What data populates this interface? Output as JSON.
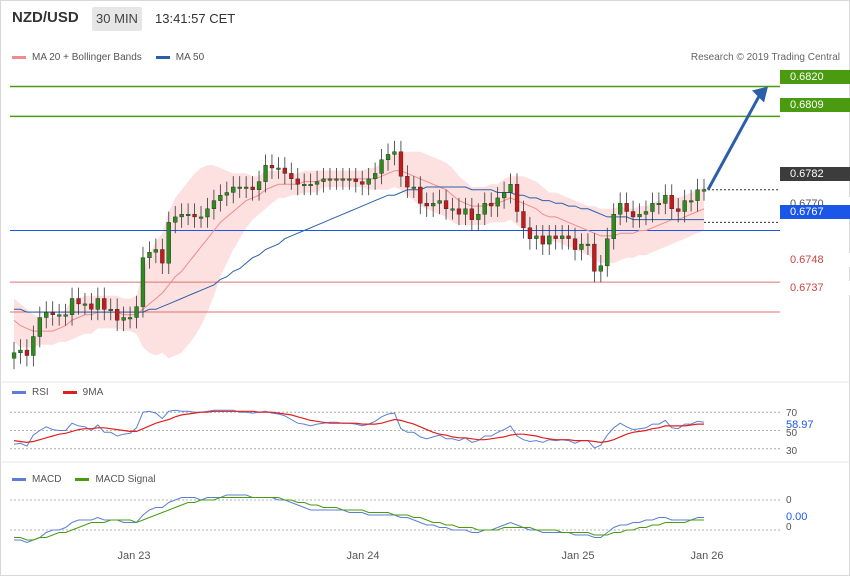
{
  "header": {
    "pair": "NZD/USD",
    "timeframe": "30 MIN",
    "time": "13:41:57 CET"
  },
  "main_legend": [
    {
      "label": "MA 20 + Bollinger Bands",
      "color": "#f28b8b"
    },
    {
      "label": "MA 50",
      "color": "#2b5fa8"
    }
  ],
  "copyright": "Research © 2019 Trading Central",
  "price_levels": [
    {
      "value": "0.6820",
      "kind": "resistance",
      "color": "#4a9b10"
    },
    {
      "value": "0.6809",
      "kind": "resistance",
      "color": "#4a9b10"
    },
    {
      "value": "0.6782",
      "kind": "last",
      "color": "#3c3c3c"
    },
    {
      "value": "0.6770",
      "kind": "ma",
      "color": "#555555"
    },
    {
      "value": "0.6767",
      "kind": "pivot",
      "color": "#1a57e8"
    },
    {
      "value": "0.6748",
      "kind": "support",
      "color": "#e05050"
    },
    {
      "value": "0.6737",
      "kind": "support",
      "color": "#e05050"
    }
  ],
  "rsi_legend": [
    {
      "label": "RSI",
      "color": "#5b7fd6"
    },
    {
      "label": "9MA",
      "color": "#e02020"
    }
  ],
  "rsi_ticks": [
    "70",
    "50",
    "30"
  ],
  "rsi_value": "58.97",
  "macd_legend": [
    {
      "label": "MACD",
      "color": "#5b7fd6"
    },
    {
      "label": "MACD Signal",
      "color": "#4a9b10"
    }
  ],
  "macd_ticks": [
    "0",
    "0"
  ],
  "macd_value": "0.00",
  "x_ticks": [
    "Jan 23",
    "Jan 24",
    "Jan 25",
    "Jan 26"
  ],
  "chart_data": {
    "type": "candlestick",
    "ylim": [
      0.6712,
      0.6829
    ],
    "price_series_close": [
      0.6722,
      0.6723,
      0.6721,
      0.6728,
      0.6735,
      0.6737,
      0.6736,
      0.6736,
      0.6736,
      0.6742,
      0.674,
      0.674,
      0.6738,
      0.6742,
      0.6738,
      0.6738,
      0.6734,
      0.6735,
      0.6735,
      0.6739,
      0.6757,
      0.6759,
      0.676,
      0.6755,
      0.677,
      0.6772,
      0.6773,
      0.6773,
      0.6772,
      0.6772,
      0.6775,
      0.6778,
      0.678,
      0.6781,
      0.6783,
      0.6783,
      0.6783,
      0.6782,
      0.6785,
      0.6791,
      0.679,
      0.679,
      0.6788,
      0.6786,
      0.6784,
      0.6784,
      0.6784,
      0.6785,
      0.6786,
      0.6786,
      0.6786,
      0.6786,
      0.6786,
      0.6785,
      0.6784,
      0.6786,
      0.6788,
      0.6793,
      0.6795,
      0.6796,
      0.6787,
      0.6783,
      0.6783,
      0.6777,
      0.6776,
      0.6777,
      0.6778,
      0.6775,
      0.6775,
      0.6773,
      0.6775,
      0.6771,
      0.6773,
      0.6777,
      0.6776,
      0.6779,
      0.6781,
      0.6784,
      0.6774,
      0.6768,
      0.6764,
      0.6765,
      0.6762,
      0.6765,
      0.6764,
      0.6765,
      0.6764,
      0.676,
      0.6762,
      0.6762,
      0.6752,
      0.6754,
      0.6764,
      0.6773,
      0.6777,
      0.6774,
      0.6772,
      0.6773,
      0.6774,
      0.6777,
      0.6777,
      0.678,
      0.6775,
      0.6774,
      0.6778,
      0.6778,
      0.6782,
      0.6782
    ],
    "ma20_series": [
      0.6734,
      0.6732,
      0.6731,
      0.673,
      0.673,
      0.673,
      0.673,
      0.6731,
      0.6732,
      0.6734,
      0.6735,
      0.6736,
      0.6736,
      0.6737,
      0.6737,
      0.6737,
      0.6737,
      0.6736,
      0.6736,
      0.6736,
      0.6738,
      0.674,
      0.6742,
      0.6744,
      0.6747,
      0.675,
      0.6752,
      0.6755,
      0.6758,
      0.6761,
      0.6764,
      0.6767,
      0.677,
      0.6772,
      0.6774,
      0.6776,
      0.6778,
      0.6779,
      0.678,
      0.6782,
      0.6783,
      0.6784,
      0.6784,
      0.6784,
      0.6784,
      0.6785,
      0.6785,
      0.6785,
      0.6786,
      0.6786,
      0.6786,
      0.6786,
      0.6786,
      0.6786,
      0.6786,
      0.6786,
      0.6786,
      0.6787,
      0.6788,
      0.6789,
      0.6789,
      0.6788,
      0.6787,
      0.6786,
      0.6785,
      0.6784,
      0.6783,
      0.6782,
      0.678,
      0.6778,
      0.6777,
      0.6776,
      0.6776,
      0.6776,
      0.6777,
      0.6777,
      0.6778,
      0.6779,
      0.6778,
      0.6777,
      0.6776,
      0.6775,
      0.6773,
      0.6772,
      0.6772,
      0.6771,
      0.677,
      0.6769,
      0.6768,
      0.6767,
      0.6766,
      0.6765,
      0.6765,
      0.6765,
      0.6766,
      0.6766,
      0.6766,
      0.6767,
      0.6767,
      0.6768,
      0.6769,
      0.677,
      0.6771,
      0.6771,
      0.6772,
      0.6773,
      0.6774,
      0.6775
    ],
    "ma50_series": [
      0.6738,
      0.6738,
      0.6737,
      0.6737,
      0.6737,
      0.6737,
      0.6737,
      0.6737,
      0.6737,
      0.6737,
      0.6737,
      0.6737,
      0.6737,
      0.6737,
      0.6737,
      0.6737,
      0.6737,
      0.6737,
      0.6737,
      0.6737,
      0.6737,
      0.6738,
      0.6738,
      0.6739,
      0.674,
      0.6741,
      0.6742,
      0.6743,
      0.6744,
      0.6745,
      0.6746,
      0.6747,
      0.6749,
      0.675,
      0.6752,
      0.6753,
      0.6755,
      0.6757,
      0.6758,
      0.676,
      0.6761,
      0.6762,
      0.6764,
      0.6765,
      0.6766,
      0.6767,
      0.6768,
      0.6769,
      0.677,
      0.6771,
      0.6772,
      0.6773,
      0.6774,
      0.6775,
      0.6776,
      0.6777,
      0.6778,
      0.6779,
      0.678,
      0.678,
      0.6781,
      0.6782,
      0.6782,
      0.6782,
      0.6783,
      0.6783,
      0.6783,
      0.6783,
      0.6783,
      0.6783,
      0.6783,
      0.6782,
      0.6782,
      0.6782,
      0.6782,
      0.6781,
      0.6781,
      0.6781,
      0.678,
      0.678,
      0.6779,
      0.6779,
      0.6778,
      0.6778,
      0.6777,
      0.6777,
      0.6776,
      0.6776,
      0.6775,
      0.6775,
      0.6774,
      0.6773,
      0.6772,
      0.6772,
      0.6772,
      0.6772,
      0.6771,
      0.6771,
      0.6771,
      0.6771,
      0.6771,
      0.6771,
      0.6771,
      0.6771,
      0.6771,
      0.6771,
      0.6771,
      0.6771
    ],
    "band_width": [
      0.0008,
      0.0008,
      0.0007,
      0.0006,
      0.0005,
      0.0005,
      0.0005,
      0.0005,
      0.0006,
      0.0007,
      0.0007,
      0.0007,
      0.0007,
      0.0006,
      0.0006,
      0.0006,
      0.0006,
      0.0006,
      0.0006,
      0.0007,
      0.0014,
      0.0018,
      0.0021,
      0.0022,
      0.0027,
      0.0029,
      0.003,
      0.003,
      0.003,
      0.0029,
      0.0027,
      0.0024,
      0.002,
      0.0017,
      0.0014,
      0.0012,
      0.001,
      0.0008,
      0.0007,
      0.0007,
      0.0006,
      0.0005,
      0.0005,
      0.0004,
      0.0004,
      0.0004,
      0.0004,
      0.0004,
      0.0003,
      0.0003,
      0.0003,
      0.0003,
      0.0003,
      0.0003,
      0.0003,
      0.0004,
      0.0004,
      0.0005,
      0.0006,
      0.0006,
      0.0007,
      0.0008,
      0.0009,
      0.001,
      0.001,
      0.001,
      0.001,
      0.001,
      0.001,
      0.0009,
      0.0008,
      0.0007,
      0.0007,
      0.0007,
      0.0007,
      0.0007,
      0.0008,
      0.0008,
      0.0009,
      0.001,
      0.001,
      0.001,
      0.001,
      0.0009,
      0.0009,
      0.0009,
      0.0009,
      0.0009,
      0.0009,
      0.0009,
      0.001,
      0.001,
      0.001,
      0.001,
      0.001,
      0.0009,
      0.0009,
      0.0009,
      0.0009,
      0.0009,
      0.0009,
      0.0009,
      0.0009,
      0.0008,
      0.0008,
      0.0008,
      0.0008,
      0.0008
    ],
    "forecast_target": 0.682,
    "rsi_ylim": [
      20,
      80
    ],
    "rsi_series": [
      35,
      36,
      33,
      45,
      50,
      54,
      51,
      50,
      50,
      58,
      55,
      54,
      50,
      56,
      48,
      48,
      44,
      46,
      47,
      53,
      70,
      71,
      69,
      63,
      71,
      72,
      71,
      71,
      70,
      70,
      71,
      72,
      72,
      72,
      72,
      70,
      70,
      69,
      70,
      71,
      69,
      68,
      66,
      62,
      58,
      57,
      55,
      57,
      58,
      59,
      59,
      58,
      58,
      57,
      55,
      57,
      60,
      65,
      68,
      69,
      52,
      48,
      48,
      43,
      41,
      43,
      45,
      41,
      41,
      39,
      42,
      37,
      39,
      44,
      44,
      48,
      51,
      55,
      44,
      40,
      38,
      39,
      37,
      40,
      39,
      40,
      39,
      36,
      39,
      39,
      31,
      34,
      45,
      53,
      58,
      54,
      51,
      52,
      53,
      57,
      57,
      61,
      53,
      52,
      57,
      57,
      60,
      59
    ],
    "rsi_ma_series": [
      39,
      38,
      37,
      38,
      40,
      42,
      44,
      46,
      47,
      49,
      51,
      52,
      52,
      53,
      53,
      52,
      51,
      50,
      49,
      49,
      52,
      55,
      58,
      60,
      62,
      65,
      67,
      68,
      69,
      70,
      70,
      71,
      71,
      71,
      71,
      71,
      71,
      71,
      70,
      70,
      70,
      69,
      68,
      67,
      65,
      63,
      61,
      60,
      59,
      58,
      58,
      58,
      58,
      58,
      57,
      57,
      57,
      58,
      60,
      62,
      61,
      59,
      57,
      54,
      51,
      48,
      46,
      45,
      43,
      42,
      42,
      41,
      40,
      40,
      41,
      42,
      43,
      45,
      46,
      46,
      45,
      44,
      42,
      41,
      40,
      40,
      40,
      39,
      39,
      39,
      38,
      37,
      38,
      40,
      43,
      46,
      48,
      49,
      50,
      52,
      53,
      55,
      55,
      55,
      55,
      56,
      57,
      57
    ],
    "macd_ylim": [
      -0.001,
      0.0012
    ],
    "macd_series": [
      -0.0008,
      -0.0008,
      -0.0009,
      -0.0008,
      -0.0007,
      -0.0005,
      -0.0004,
      -0.0004,
      -0.0003,
      -0.0001,
      0.0,
      0.0,
      0.0,
      0.0001,
      0.0,
      0.0,
      0.0,
      -0.0001,
      -0.0001,
      -0.0001,
      0.0002,
      0.0004,
      0.0005,
      0.0005,
      0.0007,
      0.0008,
      0.0009,
      0.0009,
      0.0009,
      0.0008,
      0.0009,
      0.0009,
      0.0009,
      0.001,
      0.001,
      0.001,
      0.001,
      0.0009,
      0.0009,
      0.0009,
      0.0009,
      0.0008,
      0.0008,
      0.0007,
      0.0006,
      0.0005,
      0.0004,
      0.0004,
      0.0004,
      0.0004,
      0.0004,
      0.0004,
      0.0003,
      0.0003,
      0.0003,
      0.0002,
      0.0002,
      0.0002,
      0.0002,
      0.0002,
      0.0001,
      0.0001,
      0.0,
      -0.0001,
      -0.0002,
      -0.0002,
      -0.0003,
      -0.0003,
      -0.0004,
      -0.0004,
      -0.0004,
      -0.0005,
      -0.0005,
      -0.0004,
      -0.0004,
      -0.0003,
      -0.0002,
      -0.0001,
      -0.0002,
      -0.0003,
      -0.0004,
      -0.0004,
      -0.0005,
      -0.0005,
      -0.0005,
      -0.0005,
      -0.0005,
      -0.0006,
      -0.0006,
      -0.0006,
      -0.0007,
      -0.0007,
      -0.0005,
      -0.0003,
      -0.0002,
      -0.0002,
      -0.0001,
      -0.0001,
      0.0,
      0.0,
      0.0001,
      0.0001,
      0.0,
      0.0,
      0.0,
      0.0,
      0.0001,
      0.0001
    ],
    "macd_signal_series": [
      -0.0007,
      -0.0007,
      -0.0008,
      -0.0008,
      -0.0007,
      -0.0007,
      -0.0006,
      -0.0005,
      -0.0005,
      -0.0004,
      -0.0003,
      -0.0002,
      -0.0001,
      -0.0001,
      -0.0001,
      0.0,
      0.0,
      0.0,
      0.0,
      -0.0001,
      0.0,
      0.0001,
      0.0002,
      0.0003,
      0.0004,
      0.0005,
      0.0006,
      0.0007,
      0.0007,
      0.0008,
      0.0008,
      0.0008,
      0.0009,
      0.0009,
      0.0009,
      0.0009,
      0.0009,
      0.0009,
      0.0009,
      0.0009,
      0.0009,
      0.0009,
      0.0008,
      0.0008,
      0.0007,
      0.0007,
      0.0006,
      0.0006,
      0.0005,
      0.0005,
      0.0005,
      0.0004,
      0.0004,
      0.0004,
      0.0004,
      0.0003,
      0.0003,
      0.0003,
      0.0003,
      0.0002,
      0.0002,
      0.0002,
      0.0001,
      0.0001,
      0.0,
      -0.0001,
      -0.0001,
      -0.0002,
      -0.0002,
      -0.0003,
      -0.0003,
      -0.0003,
      -0.0004,
      -0.0004,
      -0.0004,
      -0.0004,
      -0.0003,
      -0.0003,
      -0.0003,
      -0.0003,
      -0.0003,
      -0.0004,
      -0.0004,
      -0.0004,
      -0.0004,
      -0.0005,
      -0.0005,
      -0.0005,
      -0.0005,
      -0.0005,
      -0.0006,
      -0.0006,
      -0.0006,
      -0.0005,
      -0.0005,
      -0.0004,
      -0.0004,
      -0.0003,
      -0.0003,
      -0.0002,
      -0.0002,
      -0.0001,
      -0.0001,
      -0.0001,
      -0.0001,
      0.0,
      0.0,
      0.0
    ]
  }
}
